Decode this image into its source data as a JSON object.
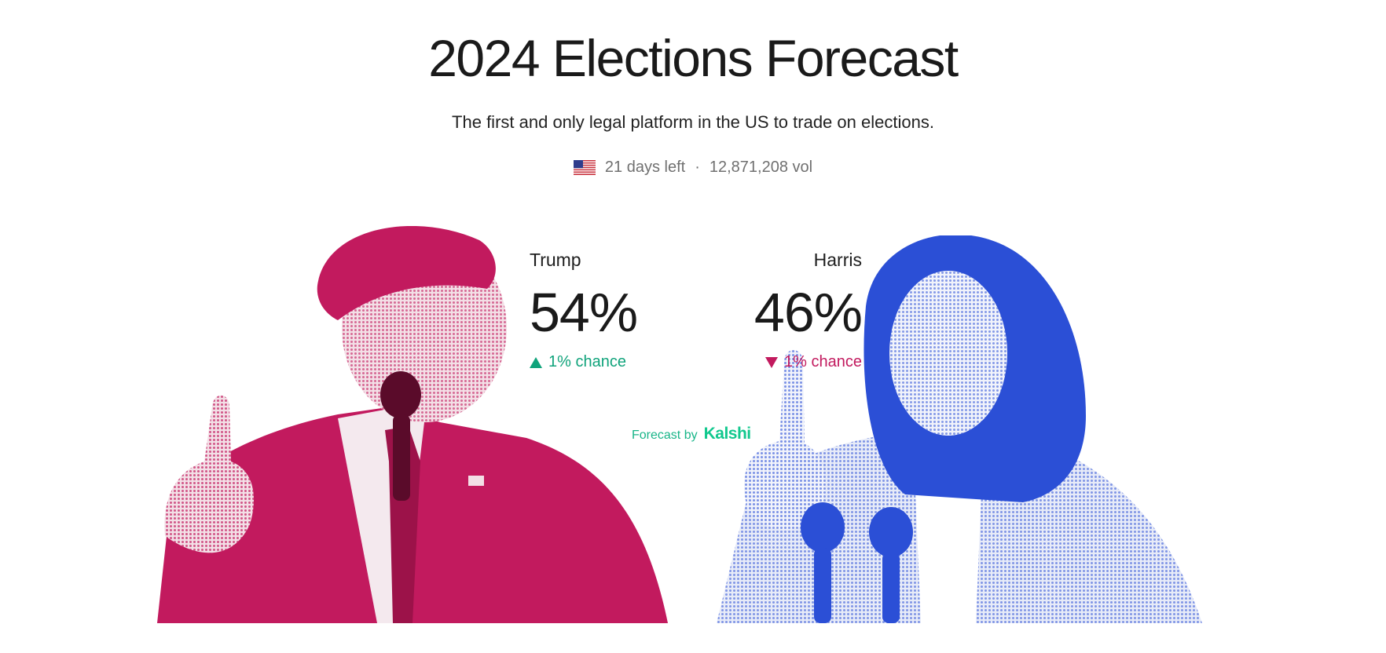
{
  "header": {
    "title": "2024 Elections Forecast",
    "subtitle": "The first and only legal platform in the US to trade on elections."
  },
  "market": {
    "flag_icon": "us-flag-icon",
    "days_left": "21 days left",
    "separator": "·",
    "volume": "12,871,208 vol"
  },
  "candidates": [
    {
      "name": "Trump",
      "percent": "54%",
      "change": "1% chance",
      "direction": "up",
      "color": "#c21a5e"
    },
    {
      "name": "Harris",
      "percent": "46%",
      "change": "1% chance",
      "direction": "down",
      "color": "#2b4fd6"
    }
  ],
  "attribution": {
    "label": "Forecast by",
    "brand": "Kalshi",
    "color": "#12c88e"
  },
  "colors": {
    "up": "#10a37b",
    "down": "#c21a5e",
    "trump_portrait": "#c21a5e",
    "harris_portrait": "#2b4fd6"
  }
}
